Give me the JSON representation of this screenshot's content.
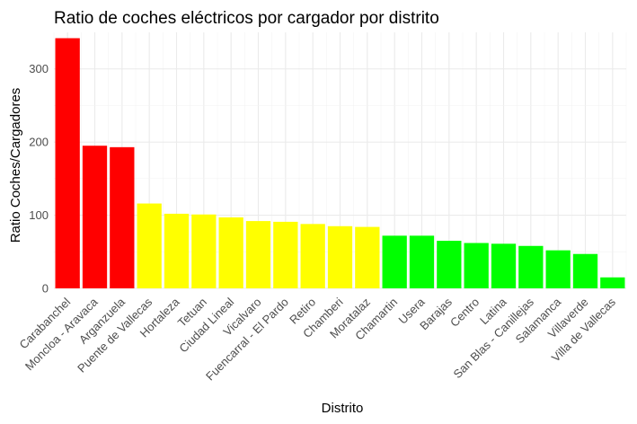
{
  "chart_data": {
    "type": "bar",
    "title": "Ratio de coches eléctricos por cargador por distrito",
    "xlabel": "Distrito",
    "ylabel": "Ratio Coches/Cargadores",
    "ylim": [
      0,
      350
    ],
    "yticks": [
      0,
      100,
      200,
      300
    ],
    "grid": true,
    "legend": "none",
    "categories": [
      "Carabanchel",
      "Moncloa - Aravaca",
      "Arganzuela",
      "Puente de Vallecas",
      "Hortaleza",
      "Tetuan",
      "Ciudad Lineal",
      "Vicalvaro",
      "Fuencarral - El Pardo",
      "Retiro",
      "Chamberi",
      "Moratalaz",
      "Chamartin",
      "Usera",
      "Barajas",
      "Centro",
      "Latina",
      "San Blas - Canillejas",
      "Salamanca",
      "Villaverde",
      "Villa de Vallecas"
    ],
    "values": [
      342,
      195,
      193,
      116,
      102,
      101,
      97,
      92,
      91,
      88,
      85,
      84,
      72,
      72,
      65,
      62,
      61,
      58,
      52,
      47,
      15
    ],
    "colors": [
      "#ff0000",
      "#ff0000",
      "#ff0000",
      "#ffff00",
      "#ffff00",
      "#ffff00",
      "#ffff00",
      "#ffff00",
      "#ffff00",
      "#ffff00",
      "#ffff00",
      "#ffff00",
      "#00ff00",
      "#00ff00",
      "#00ff00",
      "#00ff00",
      "#00ff00",
      "#00ff00",
      "#00ff00",
      "#00ff00",
      "#00ff00"
    ]
  }
}
